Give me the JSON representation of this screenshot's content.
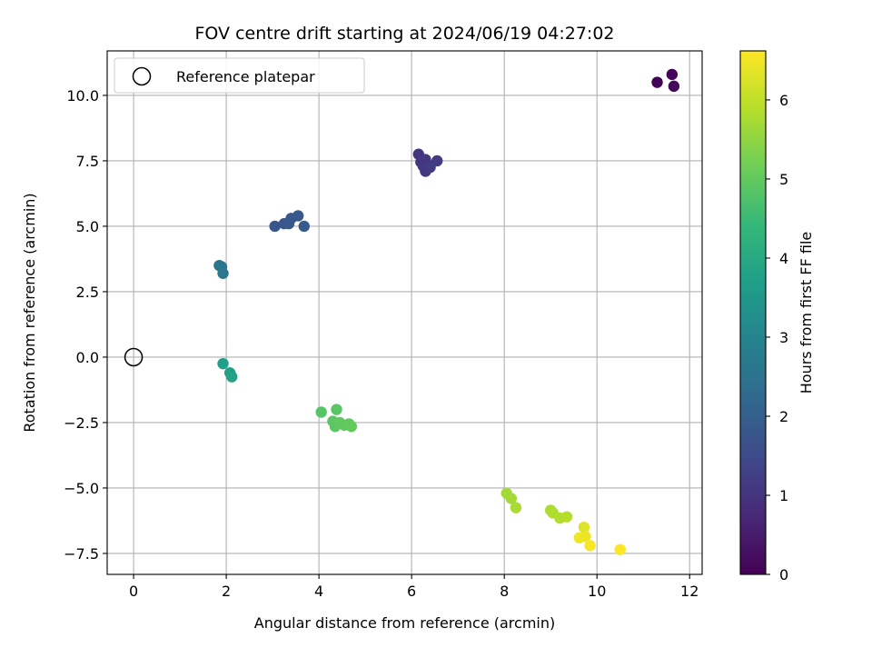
{
  "chart_data": {
    "type": "scatter",
    "title": "FOV centre drift starting at 2024/06/19 04:27:02",
    "xlabel": "Angular distance from reference (arcmin)",
    "ylabel": "Rotation from reference (arcmin)",
    "xlim": [
      -0.57,
      12.27
    ],
    "ylim": [
      -8.3,
      11.7
    ],
    "xticks": [
      0,
      2,
      4,
      6,
      8,
      10,
      12
    ],
    "xtick_labels": [
      "0",
      "2",
      "4",
      "6",
      "8",
      "10",
      "12"
    ],
    "yticks": [
      -7.5,
      -5.0,
      -2.5,
      0.0,
      2.5,
      5.0,
      7.5,
      10.0
    ],
    "ytick_labels": [
      "−7.5",
      "−5.0",
      "−2.5",
      "0.0",
      "2.5",
      "5.0",
      "7.5",
      "10.0"
    ],
    "grid": true,
    "legend": {
      "position": "top-left",
      "entries": [
        "Reference platepar"
      ]
    },
    "reference_point": {
      "x": 0,
      "y": 0,
      "marker": "open-circle",
      "color": "#000000"
    },
    "colorbar": {
      "label": "Hours from first FF file",
      "lim": [
        0,
        6.62
      ],
      "ticks": [
        0,
        1,
        2,
        3,
        4,
        5,
        6
      ],
      "tick_labels": [
        "0",
        "1",
        "2",
        "3",
        "4",
        "5",
        "6"
      ],
      "colormap": "viridis",
      "stops": [
        "#440154",
        "#482878",
        "#3e4989",
        "#31688e",
        "#26828e",
        "#1f9e89",
        "#35b779",
        "#6ece58",
        "#b5de2b",
        "#fde725"
      ]
    },
    "series": [
      {
        "points": [
          {
            "x": 11.3,
            "y": 10.5,
            "c": 0.05
          },
          {
            "x": 11.62,
            "y": 10.8,
            "c": 0.1
          },
          {
            "x": 11.66,
            "y": 10.35,
            "c": 0.15
          },
          {
            "x": 6.15,
            "y": 7.75,
            "c": 1.0
          },
          {
            "x": 6.2,
            "y": 7.45,
            "c": 1.02
          },
          {
            "x": 6.25,
            "y": 7.3,
            "c": 1.05
          },
          {
            "x": 6.3,
            "y": 7.55,
            "c": 1.07
          },
          {
            "x": 6.35,
            "y": 7.35,
            "c": 1.1
          },
          {
            "x": 6.3,
            "y": 7.1,
            "c": 1.12
          },
          {
            "x": 6.55,
            "y": 7.5,
            "c": 1.15
          },
          {
            "x": 6.4,
            "y": 7.25,
            "c": 1.18
          },
          {
            "x": 3.05,
            "y": 5.0,
            "c": 1.75
          },
          {
            "x": 3.25,
            "y": 5.1,
            "c": 1.78
          },
          {
            "x": 3.35,
            "y": 5.1,
            "c": 1.8
          },
          {
            "x": 3.4,
            "y": 5.3,
            "c": 1.82
          },
          {
            "x": 3.55,
            "y": 5.4,
            "c": 1.85
          },
          {
            "x": 3.68,
            "y": 5.0,
            "c": 1.88
          },
          {
            "x": 1.85,
            "y": 3.5,
            "c": 2.55
          },
          {
            "x": 1.9,
            "y": 3.45,
            "c": 2.58
          },
          {
            "x": 1.93,
            "y": 3.2,
            "c": 2.62
          },
          {
            "x": 1.93,
            "y": -0.25,
            "c": 3.7
          },
          {
            "x": 2.08,
            "y": -0.6,
            "c": 3.75
          },
          {
            "x": 2.12,
            "y": -0.75,
            "c": 3.8
          },
          {
            "x": 4.05,
            "y": -2.1,
            "c": 4.85
          },
          {
            "x": 4.38,
            "y": -2.0,
            "c": 4.88
          },
          {
            "x": 4.3,
            "y": -2.45,
            "c": 4.9
          },
          {
            "x": 4.35,
            "y": -2.65,
            "c": 4.92
          },
          {
            "x": 4.45,
            "y": -2.5,
            "c": 4.95
          },
          {
            "x": 4.55,
            "y": -2.6,
            "c": 4.97
          },
          {
            "x": 4.65,
            "y": -2.55,
            "c": 5.0
          },
          {
            "x": 4.7,
            "y": -2.65,
            "c": 5.02
          },
          {
            "x": 8.05,
            "y": -5.2,
            "c": 5.7
          },
          {
            "x": 8.15,
            "y": -5.4,
            "c": 5.72
          },
          {
            "x": 8.25,
            "y": -5.75,
            "c": 5.75
          },
          {
            "x": 9.0,
            "y": -5.85,
            "c": 5.8
          },
          {
            "x": 9.05,
            "y": -5.95,
            "c": 5.82
          },
          {
            "x": 9.2,
            "y": -6.15,
            "c": 5.85
          },
          {
            "x": 9.35,
            "y": -6.1,
            "c": 5.88
          },
          {
            "x": 9.72,
            "y": -6.5,
            "c": 6.3
          },
          {
            "x": 9.62,
            "y": -6.9,
            "c": 6.5
          },
          {
            "x": 9.75,
            "y": -6.85,
            "c": 6.45
          },
          {
            "x": 9.85,
            "y": -7.2,
            "c": 6.55
          },
          {
            "x": 10.5,
            "y": -7.35,
            "c": 6.6
          }
        ]
      }
    ]
  }
}
